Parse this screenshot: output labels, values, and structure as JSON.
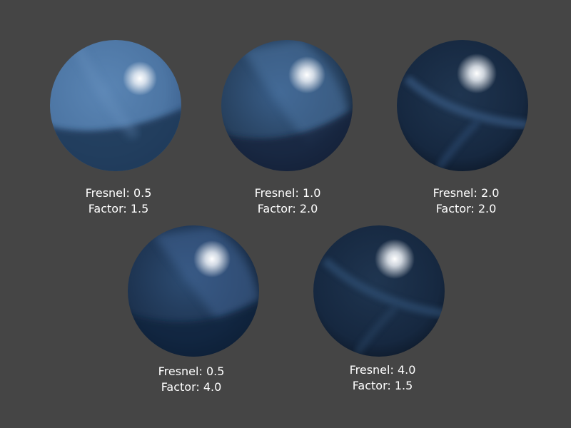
{
  "samples": [
    {
      "fresnel_label": "Fresnel: 0.5",
      "factor_label": "Factor: 1.5"
    },
    {
      "fresnel_label": "Fresnel: 1.0",
      "factor_label": "Factor: 2.0"
    },
    {
      "fresnel_label": "Fresnel: 2.0",
      "factor_label": "Factor: 2.0"
    },
    {
      "fresnel_label": "Fresnel: 0.5",
      "factor_label": "Factor: 4.0"
    },
    {
      "fresnel_label": "Fresnel: 4.0",
      "factor_label": "Factor: 1.5"
    }
  ]
}
